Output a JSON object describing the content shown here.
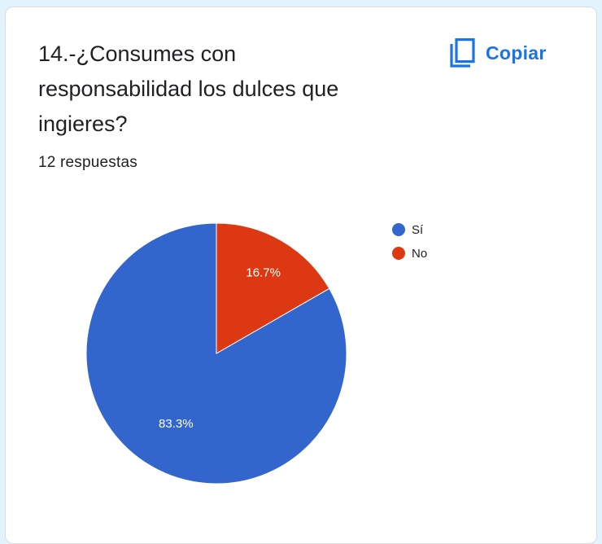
{
  "card": {
    "title": "14.-¿Consumes con responsabilidad los dulces que ingieres?",
    "responses": "12 respuestas",
    "copy_label": "Copiar",
    "copy_icon": "copy-icon"
  },
  "colors": {
    "Sí": "#3366cc",
    "No": "#dc3912",
    "accent": "#1a73e8"
  },
  "chart_data": {
    "type": "pie",
    "categories": [
      "Sí",
      "No"
    ],
    "values": [
      83.3,
      16.7
    ],
    "labels": [
      "83.3%",
      "16.7%"
    ],
    "colors": [
      "#3366cc",
      "#dc3912"
    ],
    "start_angle_deg": 90,
    "legend_position": "right"
  }
}
